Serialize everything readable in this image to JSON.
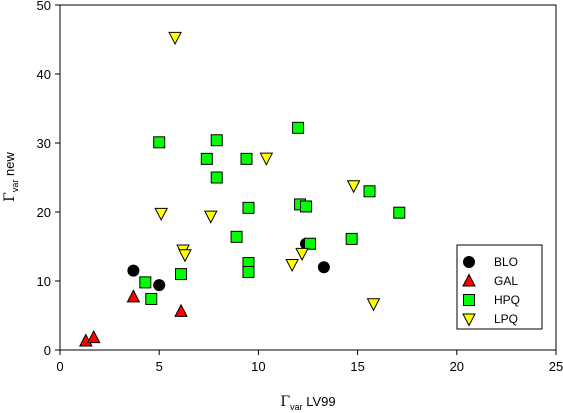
{
  "chart_data": {
    "type": "scatter",
    "xlim": [
      0,
      25
    ],
    "ylim": [
      0,
      50
    ],
    "x_ticks": [
      0,
      5,
      10,
      15,
      20,
      25
    ],
    "y_ticks": [
      0,
      10,
      20,
      30,
      40,
      50
    ],
    "grid": false,
    "legend_position": "bottom-right",
    "xlabel": {
      "symbol": "Γ",
      "subscript": "var",
      "text": " LV99"
    },
    "ylabel": {
      "symbol": "Γ",
      "subscript": "var",
      "text": " new"
    },
    "series": [
      {
        "name": "BLO",
        "marker": "circle",
        "color": "#000000",
        "points": [
          [
            3.7,
            11.5
          ],
          [
            5.0,
            9.4
          ],
          [
            12.4,
            15.4
          ],
          [
            13.3,
            12.0
          ]
        ]
      },
      {
        "name": "GAL",
        "marker": "triangle-up",
        "color": "#ff0000",
        "points": [
          [
            1.3,
            1.3
          ],
          [
            1.7,
            1.8
          ],
          [
            3.7,
            7.7
          ],
          [
            6.1,
            5.6
          ]
        ]
      },
      {
        "name": "HPQ",
        "marker": "square",
        "color": "#00ff00",
        "points": [
          [
            4.3,
            9.8
          ],
          [
            4.6,
            7.4
          ],
          [
            5.0,
            30.1
          ],
          [
            6.1,
            11.0
          ],
          [
            7.4,
            27.7
          ],
          [
            7.9,
            30.4
          ],
          [
            7.9,
            25.0
          ],
          [
            8.9,
            16.4
          ],
          [
            9.4,
            27.7
          ],
          [
            9.5,
            20.6
          ],
          [
            9.5,
            12.6
          ],
          [
            9.5,
            11.3
          ],
          [
            12.0,
            32.2
          ],
          [
            12.1,
            21.1
          ],
          [
            12.4,
            20.8
          ],
          [
            12.6,
            15.4
          ],
          [
            14.7,
            16.1
          ],
          [
            15.6,
            23.0
          ],
          [
            17.1,
            19.9
          ]
        ]
      },
      {
        "name": "LPQ",
        "marker": "triangle-down",
        "color": "#ffff00",
        "points": [
          [
            5.1,
            19.8
          ],
          [
            5.8,
            45.3
          ],
          [
            6.2,
            14.5
          ],
          [
            6.3,
            13.8
          ],
          [
            7.6,
            19.4
          ],
          [
            10.4,
            27.8
          ],
          [
            11.7,
            12.4
          ],
          [
            12.2,
            14.0
          ],
          [
            14.8,
            23.8
          ],
          [
            15.8,
            6.7
          ]
        ]
      }
    ]
  }
}
